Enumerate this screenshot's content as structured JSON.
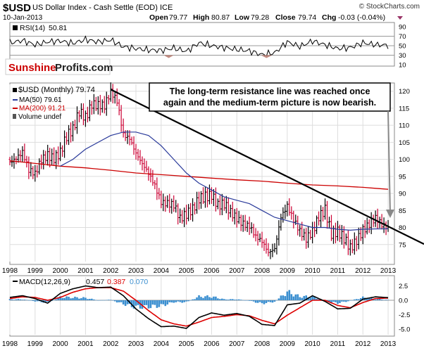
{
  "header": {
    "symbol": "$USD",
    "name": "US Dollar Index - Cash Settle (EOD) ICE",
    "date": "10-Jan-2013",
    "open_label": "Open",
    "open": "79.77",
    "high_label": "High",
    "high": "80.87",
    "low_label": "Low",
    "low": "79.28",
    "close_label": "Close",
    "close": "79.74",
    "chg_label": "Chg",
    "chg": "-0.03 (-0.04%)",
    "watermark": "© StockCharts.com"
  },
  "brand": {
    "part1": "Sunshine",
    "part2": "Profits.com"
  },
  "annotation": {
    "line1": "The long-term resistance line was reached once",
    "line2": "again and the medium-term picture is now bearish."
  },
  "colors": {
    "up": "#000000",
    "down": "#cc0033",
    "ma50": "#2a3a9a",
    "ma200": "#cc0000",
    "macd_line": "#000000",
    "signal_line": "#dd0000",
    "hist": "#3b8fd0",
    "grid": "#dddddd",
    "rsi_fill_up": "#7a9bc4",
    "rsi_fill_down": "#c08a80",
    "brand_red": "#cc0000"
  },
  "chart_data": [
    {
      "type": "line",
      "panel": "RSI",
      "legend": {
        "label": "RSI(14)",
        "value": "50.81"
      },
      "ylim": [
        10,
        90
      ],
      "y_ticks": [
        90,
        70,
        50,
        30,
        10
      ],
      "reference_lines": [
        70,
        50,
        30
      ],
      "x": [
        1998.0,
        1998.5,
        1999.0,
        1999.5,
        2000.0,
        2000.5,
        2001.0,
        2001.5,
        2002.0,
        2002.5,
        2003.0,
        2003.5,
        2004.0,
        2004.5,
        2005.0,
        2005.5,
        2006.0,
        2006.5,
        2007.0,
        2007.5,
        2008.0,
        2008.5,
        2009.0,
        2009.5,
        2010.0,
        2010.5,
        2011.0,
        2011.5,
        2012.0,
        2012.5,
        2013.0
      ],
      "values": [
        56,
        61,
        52,
        58,
        60,
        55,
        63,
        58,
        62,
        48,
        44,
        41,
        40,
        45,
        38,
        56,
        50,
        46,
        42,
        39,
        31,
        35,
        58,
        48,
        60,
        52,
        44,
        46,
        56,
        52,
        50.8
      ]
    },
    {
      "type": "line",
      "panel": "Price",
      "title": "$USD (Monthly) 79.74",
      "ylim": [
        70,
        122
      ],
      "y_ticks": [
        120,
        115,
        110,
        105,
        100,
        95,
        90,
        85,
        80,
        75
      ],
      "x_ticks": [
        "1998",
        "1999",
        "2000",
        "2001",
        "2002",
        "2003",
        "2004",
        "2005",
        "2006",
        "2007",
        "2008",
        "2009",
        "2010",
        "2011",
        "2012",
        "2013"
      ],
      "series": [
        {
          "name": "$USD (Monthly) 79.74",
          "style": "ohlc",
          "x": [
            1998.0,
            1998.25,
            1998.5,
            1998.75,
            1999.0,
            1999.25,
            1999.5,
            1999.75,
            2000.0,
            2000.25,
            2000.5,
            2000.75,
            2001.0,
            2001.25,
            2001.5,
            2001.75,
            2002.0,
            2002.25,
            2002.5,
            2002.75,
            2003.0,
            2003.25,
            2003.5,
            2003.75,
            2004.0,
            2004.25,
            2004.5,
            2004.75,
            2005.0,
            2005.25,
            2005.5,
            2005.75,
            2006.0,
            2006.25,
            2006.5,
            2006.75,
            2007.0,
            2007.25,
            2007.5,
            2007.75,
            2008.0,
            2008.25,
            2008.5,
            2008.75,
            2009.0,
            2009.25,
            2009.5,
            2009.75,
            2010.0,
            2010.25,
            2010.5,
            2010.75,
            2011.0,
            2011.25,
            2011.5,
            2011.75,
            2012.0,
            2012.25,
            2012.5,
            2012.75,
            2013.0
          ],
          "values": [
            100,
            101,
            102,
            96,
            95,
            100,
            102,
            101,
            102,
            106,
            108,
            114,
            113,
            117,
            116,
            115,
            119,
            117,
            108,
            107,
            102,
            98,
            95,
            92,
            88,
            88,
            87,
            82,
            83,
            85,
            89,
            90,
            90,
            86,
            86,
            84,
            83,
            82,
            81,
            77,
            75,
            72,
            74,
            84,
            87,
            82,
            78,
            76,
            79,
            84,
            86,
            78,
            78,
            76,
            74,
            77,
            80,
            81,
            82,
            80,
            79.74
          ]
        },
        {
          "name": "MA(50) 79.61",
          "x": [
            2000.0,
            2000.5,
            2001.0,
            2001.5,
            2002.0,
            2002.5,
            2003.0,
            2003.5,
            2004.0,
            2004.5,
            2005.0,
            2005.5,
            2006.0,
            2006.5,
            2007.0,
            2007.5,
            2008.0,
            2008.5,
            2009.0,
            2009.5,
            2010.0,
            2010.5,
            2011.0,
            2011.5,
            2012.0,
            2012.5,
            2013.0
          ],
          "values": [
            98,
            100,
            103,
            105,
            107,
            108,
            108,
            107,
            104,
            100,
            96,
            93,
            91,
            89,
            88,
            87,
            85,
            83,
            82,
            81,
            80,
            80,
            79.5,
            79.2,
            79.5,
            79.6,
            79.61
          ]
        },
        {
          "name": "MA(200) 91.21",
          "x": [
            1998.0,
            1999.0,
            2000.0,
            2001.0,
            2002.0,
            2003.0,
            2004.0,
            2005.0,
            2006.0,
            2007.0,
            2008.0,
            2009.0,
            2010.0,
            2011.0,
            2012.0,
            2012.5,
            2013.0
          ],
          "values": [
            99.6,
            98.8,
            98.0,
            97.5,
            96.8,
            96.0,
            95.5,
            95.0,
            94.5,
            94.0,
            93.6,
            93.0,
            92.5,
            92.2,
            91.8,
            91.5,
            91.21
          ]
        },
        {
          "name": "Volume undef",
          "values": []
        }
      ],
      "trendline": {
        "x": [
          2002.0,
          2013.5
        ],
        "values": [
          120.5,
          78.5
        ]
      }
    },
    {
      "type": "line",
      "panel": "MACD",
      "legend": {
        "label": "MACD(12,26,9)",
        "macd": "0.457",
        "signal": "0.387",
        "hist": "0.070"
      },
      "ylim": [
        -6,
        3.8
      ],
      "y_ticks": [
        2.5,
        0.0,
        -2.5,
        -5.0
      ],
      "x": [
        1998.0,
        1998.5,
        1999.0,
        1999.5,
        2000.0,
        2000.5,
        2001.0,
        2001.5,
        2002.0,
        2002.5,
        2003.0,
        2003.5,
        2004.0,
        2004.5,
        2005.0,
        2005.5,
        2006.0,
        2006.5,
        2007.0,
        2007.5,
        2008.0,
        2008.5,
        2009.0,
        2009.5,
        2010.0,
        2010.5,
        2011.0,
        2011.5,
        2012.0,
        2012.5,
        2013.0
      ],
      "series": [
        {
          "name": "MACD",
          "values": [
            0.5,
            0.8,
            0.3,
            -0.5,
            1.2,
            2.0,
            2.5,
            2.2,
            2.3,
            0.8,
            -1.5,
            -3.2,
            -4.6,
            -4.5,
            -4.9,
            -3.0,
            -2.2,
            -2.6,
            -2.3,
            -2.8,
            -4.2,
            -4.4,
            -0.8,
            -0.5,
            0.8,
            -0.2,
            -1.5,
            -1.4,
            0.2,
            0.6,
            0.457
          ]
        },
        {
          "name": "Signal",
          "values": [
            0.3,
            0.6,
            0.5,
            0.0,
            0.5,
            1.4,
            2.0,
            2.2,
            2.2,
            1.6,
            0.0,
            -1.8,
            -3.4,
            -4.1,
            -4.5,
            -3.8,
            -3.0,
            -2.8,
            -2.5,
            -2.7,
            -3.5,
            -4.1,
            -2.6,
            -1.3,
            0.0,
            0.0,
            -0.9,
            -1.3,
            -0.4,
            0.3,
            0.387
          ]
        },
        {
          "name": "Histogram",
          "values": [
            0.2,
            0.2,
            -0.2,
            -0.5,
            0.7,
            0.6,
            0.5,
            0.0,
            0.1,
            -0.8,
            -1.5,
            -1.4,
            -1.2,
            -0.4,
            -0.4,
            0.8,
            0.8,
            0.2,
            0.2,
            -0.1,
            -0.7,
            -0.3,
            1.8,
            0.8,
            0.8,
            -0.2,
            -0.6,
            -0.1,
            0.6,
            0.3,
            0.07
          ]
        }
      ]
    }
  ]
}
